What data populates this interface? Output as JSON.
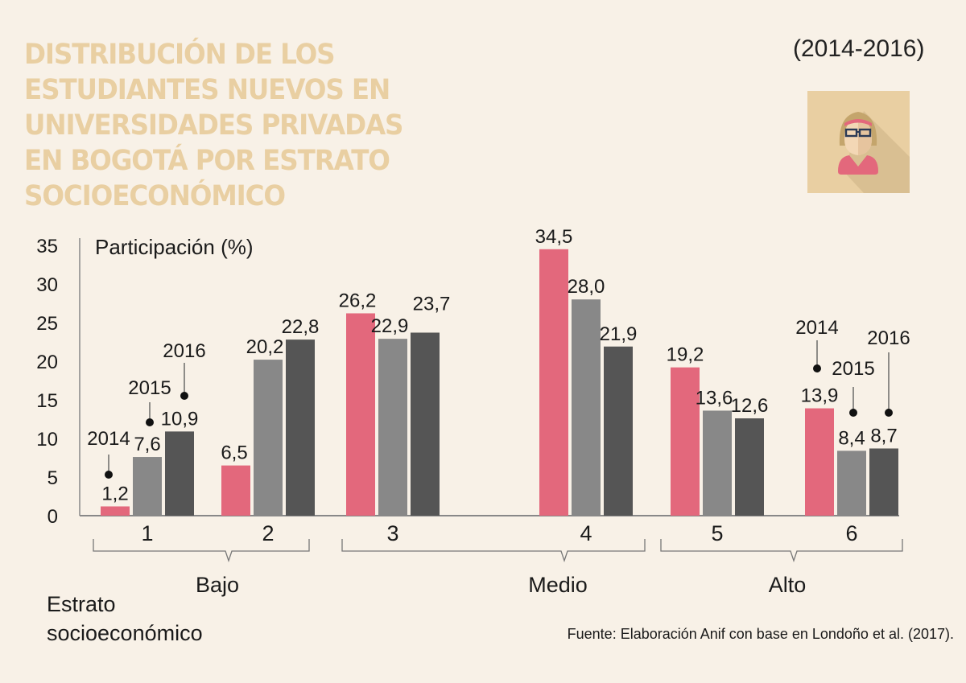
{
  "title_lines": [
    "DISTRIBUCIÓN DE LOS",
    "ESTUDIANTES NUEVOS EN",
    "UNIVERSIDADES PRIVADAS",
    "EN BOGOTÁ POR ESTRATO",
    "SOCIOECONÓMICO"
  ],
  "period": "(2014-2016)",
  "icon": "student-woman-avatar-icon",
  "colors": {
    "2014": "#e3687c",
    "2015": "#888888",
    "2016": "#555555",
    "title": "#e9cfa2",
    "background": "#f8f1e7"
  },
  "chart_data": {
    "type": "bar",
    "title": "Distribución de los estudiantes nuevos en universidades privadas en Bogotá por estrato socioeconómico",
    "ylabel": "Participación (%)",
    "xlabel": "Estrato socioeconómico",
    "categories": [
      "1",
      "2",
      "3",
      "4",
      "5",
      "6"
    ],
    "series": [
      {
        "name": "2014",
        "values": [
          1.2,
          6.5,
          26.2,
          34.5,
          19.2,
          13.9
        ],
        "labels": [
          "1,2",
          "6,5",
          "26,2",
          "34,5",
          "19,2",
          "13,9"
        ]
      },
      {
        "name": "2015",
        "values": [
          7.6,
          20.2,
          22.9,
          28.0,
          13.6,
          8.4
        ],
        "labels": [
          "7,6",
          "20,2",
          "22,9",
          "28,0",
          "13,6",
          "8,4"
        ]
      },
      {
        "name": "2016",
        "values": [
          10.9,
          22.8,
          23.7,
          21.9,
          12.6,
          8.7
        ],
        "labels": [
          "10,9",
          "22,8",
          "23,7",
          "21,9",
          "12,6",
          "8,7"
        ]
      }
    ],
    "ylim": [
      0,
      35
    ],
    "yticks": [
      "0",
      "5",
      "10",
      "15",
      "20",
      "25",
      "30",
      "35"
    ],
    "groups": [
      {
        "label": "Bajo",
        "categories": [
          "1",
          "2"
        ]
      },
      {
        "label": "Medio",
        "categories": [
          "3",
          "4"
        ]
      },
      {
        "label": "Alto",
        "categories": [
          "5",
          "6"
        ]
      }
    ],
    "annotations": [
      "2014",
      "2015",
      "2016"
    ],
    "grid": false,
    "legend": "inline annotations on categories 1 and 6"
  },
  "axis_title_lines": [
    "Estrato",
    "socioeconómico"
  ],
  "source": "Fuente: Elaboración Anif con base en Londoño et al. (2017)."
}
